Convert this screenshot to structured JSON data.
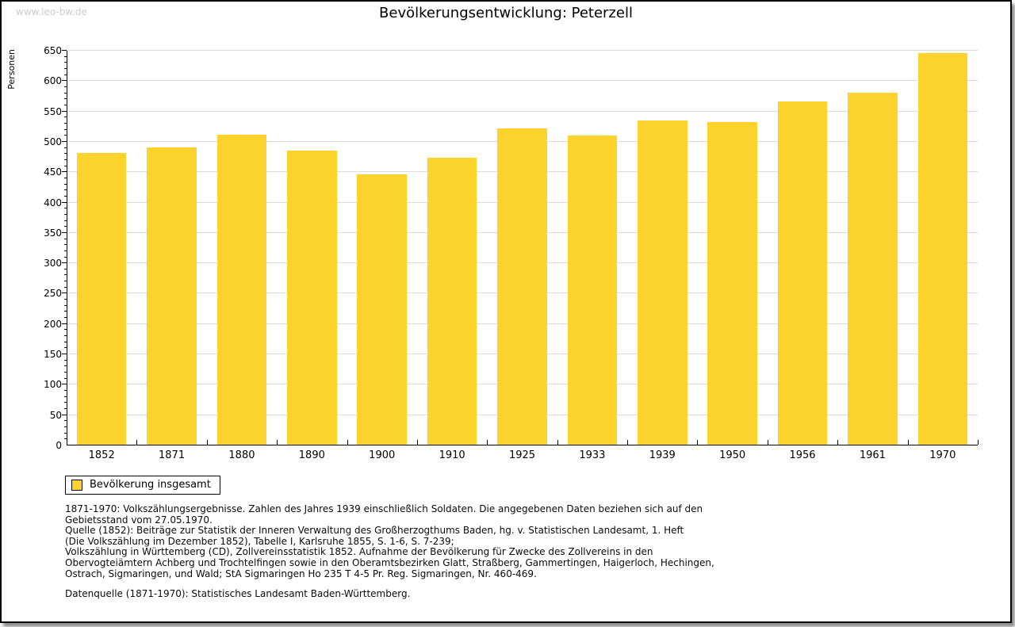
{
  "watermark": "www.leo-bw.de",
  "title": "Bevölkerungsentwicklung: Peterzell",
  "chart_data": {
    "type": "bar",
    "title": "Bevölkerungsentwicklung: Peterzell",
    "xlabel": "",
    "ylabel": "Personen",
    "categories": [
      "1852",
      "1871",
      "1880",
      "1890",
      "1900",
      "1910",
      "1925",
      "1933",
      "1939",
      "1950",
      "1956",
      "1961",
      "1970"
    ],
    "values": [
      480,
      490,
      511,
      484,
      445,
      472,
      521,
      509,
      534,
      531,
      565,
      579,
      645
    ],
    "series_name": "Bevölkerung insgesamt",
    "ylim": [
      0,
      650
    ],
    "ytick_step": 50,
    "ytick_minor_step": 10,
    "grid": true,
    "bar_color": "#fcd32d",
    "legend_position": "bottom-left"
  },
  "legend": {
    "label": "Bevölkerung insgesamt",
    "swatch_color": "#fcd32d"
  },
  "footnotes": {
    "lines": [
      "1871-1970: Volkszählungsergebnisse. Zahlen des Jahres 1939 einschließlich Soldaten. Die angegebenen Daten beziehen sich auf den",
      "Gebietsstand vom 27.05.1970.",
      "Quelle (1852): Beiträge zur Statistik der Inneren Verwaltung des Großherzogthums Baden, hg. v. Statistischen Landesamt, 1. Heft",
      "(Die Volkszählung im Dezember 1852), Tabelle I, Karlsruhe 1855, S. 1-6, S. 7-239;",
      "Volkszählung in Württemberg (CD), Zollvereinsstatistik 1852. Aufnahme der Bevölkerung für Zwecke des Zollvereins in den",
      "Obervogteiämtern Achberg und Trochtelfingen sowie in den Oberamtsbezirken Glatt, Straßberg, Gammertingen, Haigerloch, Hechingen,",
      "Ostrach, Sigmaringen, und Wald; StA Sigmaringen Ho 235 T 4-5 Pr. Reg. Sigmaringen, Nr. 460-469."
    ],
    "datasource": "Datenquelle (1871-1970): Statistisches Landesamt Baden-Württemberg."
  },
  "colors": {
    "bar": "#fcd32d",
    "gridline": "#dcdcdc",
    "watermark": "#cccccc",
    "axis": "#000000",
    "background": "#ffffff",
    "border": "#000000"
  }
}
